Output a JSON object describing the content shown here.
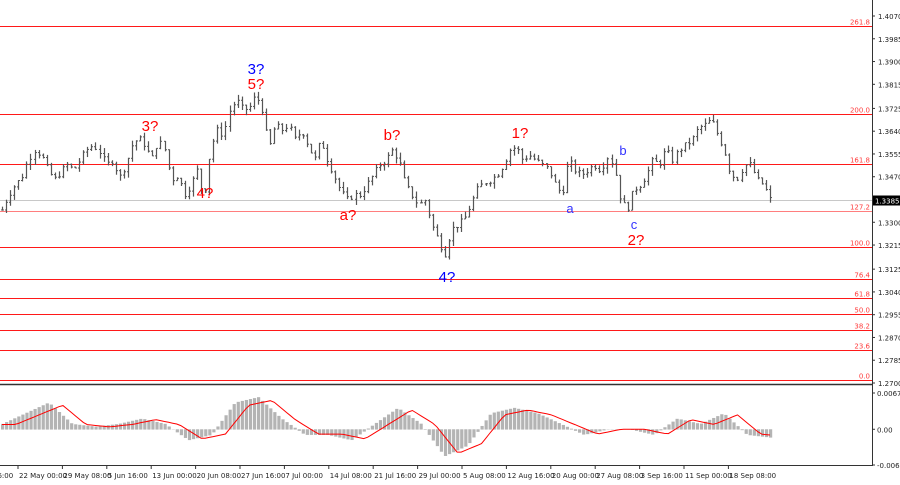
{
  "chart_data": {
    "type": "bar",
    "subtype": "ohlc-price-chart-with-oscillator",
    "price_axis": {
      "ticks": [
        "1.4070",
        "1.3985",
        "1.3900",
        "1.3815",
        "1.3725",
        "1.3640",
        "1.3555",
        "1.3470",
        "1.3300",
        "1.3215",
        "1.3125",
        "1.3040",
        "1.2955",
        "1.2870",
        "1.2785",
        "1.2700"
      ],
      "range": [
        1.27,
        1.407
      ]
    },
    "current_price": "1.3385",
    "x_axis_labels": [
      "16:00",
      "22 May 00:00",
      "29 May 08:00",
      "5 Jun 16:00",
      "13 Jun 00:00",
      "20 Jun 08:00",
      "27 Jun 16:00",
      "7 Jul 00:00",
      "14 Jul 08:00",
      "21 Jul 16:00",
      "29 Jul 00:00",
      "5 Aug 08:00",
      "12 Aug 16:00",
      "20 Aug 00:00",
      "27 Aug 08:00",
      "3 Sep 16:00",
      "11 Sep 00:00",
      "18 Sep 08:00"
    ],
    "price_path": [
      1.3346,
      1.3402,
      1.3439,
      1.3465,
      1.3532,
      1.357,
      1.3551,
      1.3495,
      1.3458,
      1.3488,
      1.3514,
      1.3495,
      1.3532,
      1.357,
      1.3588,
      1.3562,
      1.3514,
      1.3532,
      1.3465,
      1.3514,
      1.3588,
      1.3615,
      1.3588,
      1.3532,
      1.3607,
      1.357,
      1.3458,
      1.3476,
      1.3402,
      1.3439,
      1.3495,
      1.3383,
      1.357,
      1.3644,
      1.3626,
      1.3719,
      1.3756,
      1.3719,
      1.3727,
      1.3775,
      1.3719,
      1.357,
      1.3663,
      1.3644,
      1.3663,
      1.3607,
      1.3644,
      1.3588,
      1.3532,
      1.3607,
      1.3532,
      1.3476,
      1.342,
      1.3383,
      1.3402,
      1.3402,
      1.3439,
      1.3476,
      1.3514,
      1.3532,
      1.357,
      1.3532,
      1.3439,
      1.3402,
      1.3364,
      1.3383,
      1.329,
      1.3234,
      1.3178,
      1.3271,
      1.329,
      1.3308,
      1.3364,
      1.342,
      1.3447,
      1.3458,
      1.3476,
      1.3514,
      1.357,
      1.3581,
      1.3532,
      1.3551,
      1.3532,
      1.3514,
      1.3495,
      1.3439,
      1.3402,
      1.3532,
      1.3495,
      1.3476,
      1.3495,
      1.3514,
      1.3495,
      1.3544,
      1.3514,
      1.3383,
      1.3346,
      1.342,
      1.3439,
      1.3476,
      1.3532,
      1.3514,
      1.357,
      1.3532,
      1.357,
      1.3588,
      1.3607,
      1.3652,
      1.3663,
      1.3682,
      1.3626,
      1.357,
      1.3476,
      1.3465,
      1.3514,
      1.3514,
      1.3458,
      1.3439,
      1.3385
    ],
    "oscillator": {
      "ticks": [
        "0.00678",
        "0.00",
        "-0.00668"
      ],
      "range": [
        -0.00668,
        0.00678
      ],
      "values": [
        0.001,
        0.003,
        0.005,
        0.001,
        0.0005,
        0.001,
        0.002,
        0.001,
        -0.002,
        -0.001,
        0.005,
        0.006,
        0.002,
        -0.001,
        -0.001,
        -0.002,
        0.001,
        0.004,
        0.001,
        -0.005,
        -0.003,
        0.003,
        0.004,
        0.003,
        0.001,
        -0.001,
        0.0,
        0.0,
        -0.001,
        0.002,
        0.001,
        0.003,
        -0.001,
        -0.0015
      ]
    },
    "fib_levels": [
      {
        "label": "261.8",
        "price": 1.4032
      },
      {
        "label": "200.0",
        "price": 1.3704
      },
      {
        "label": "161.8",
        "price": 1.3518
      },
      {
        "label": "127.2",
        "price": 1.3342
      },
      {
        "label": "100.0",
        "price": 1.3208
      },
      {
        "label": "76.4",
        "price": 1.3088
      },
      {
        "label": "61.8",
        "price": 1.3017
      },
      {
        "label": "50.0",
        "price": 1.2957
      },
      {
        "label": "38.2",
        "price": 1.2898
      },
      {
        "label": "23.6",
        "price": 1.2823
      },
      {
        "label": "0.0",
        "price": 1.2711
      }
    ],
    "wave_labels": [
      {
        "text": "3?",
        "color": "#0000ff"
      },
      {
        "text": "5?",
        "color": "#ff0000"
      },
      {
        "text": "3?",
        "color": "#ff0000"
      },
      {
        "text": "4?",
        "color": "#ff0000"
      },
      {
        "text": "a?",
        "color": "#ff0000"
      },
      {
        "text": "b?",
        "color": "#ff0000"
      },
      {
        "text": "4?",
        "color": "#0000ff"
      },
      {
        "text": "1?",
        "color": "#ff0000"
      },
      {
        "text": "a",
        "color": "#0000ff"
      },
      {
        "text": "b",
        "color": "#0000ff"
      },
      {
        "text": "c",
        "color": "#0000ff"
      },
      {
        "text": "2?",
        "color": "#ff0000"
      }
    ],
    "colors": {
      "bars": "#555555",
      "fib": "#ff0000",
      "histogram": "#b4b4b4",
      "signal": "#ff0000",
      "current_price_bg": "#000000"
    },
    "grid": false
  }
}
